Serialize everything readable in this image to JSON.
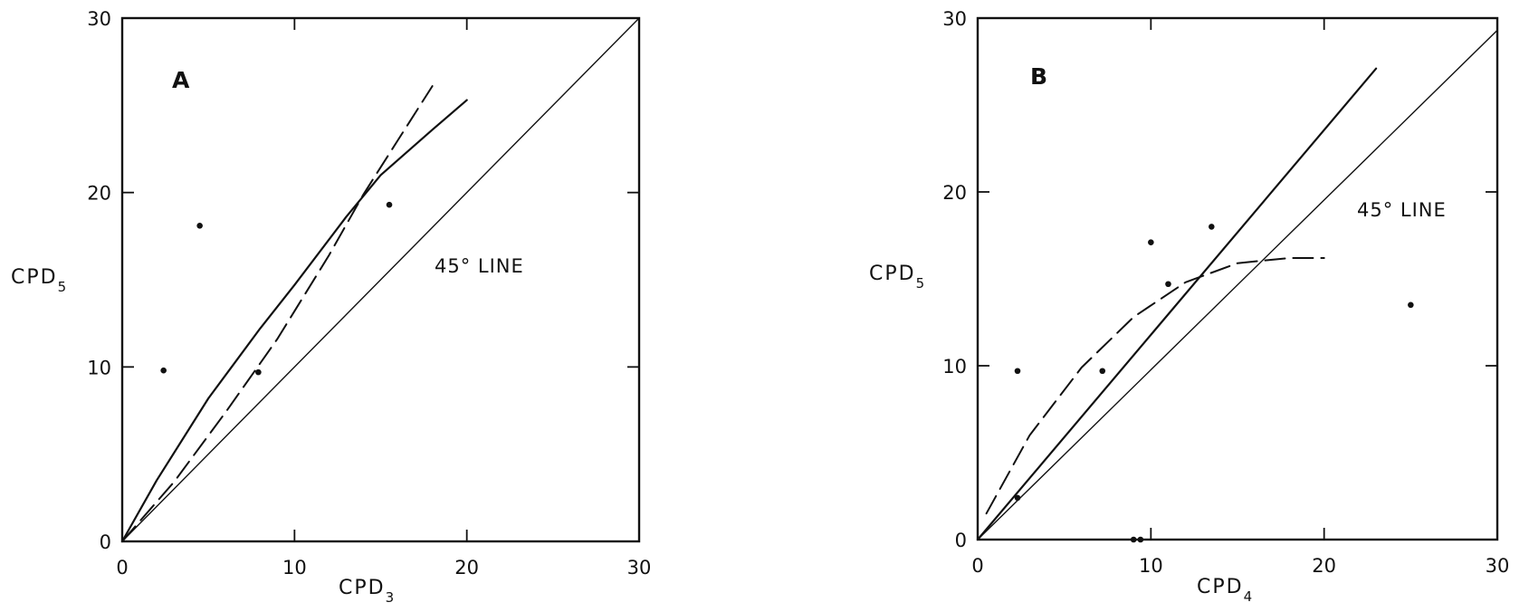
{
  "chart_data": [
    {
      "type": "line",
      "panel_label": "A",
      "xlabel": "CPD",
      "xlabel_sub": "3",
      "ylabel": "CPD",
      "ylabel_sub": "5",
      "xlim": [
        0,
        30
      ],
      "ylim": [
        0,
        30
      ],
      "xticks": [
        "0",
        "10",
        "20",
        "30"
      ],
      "yticks": [
        "0",
        "10",
        "20",
        "30"
      ],
      "grid": false,
      "annotation": "45° LINE",
      "series": [
        {
          "style": "solid-thin",
          "x": [
            0,
            30
          ],
          "y": [
            0,
            30
          ]
        },
        {
          "style": "solid",
          "x": [
            0,
            2,
            5,
            8,
            10,
            13,
            15,
            18,
            20
          ],
          "y": [
            0,
            3.5,
            8.2,
            12.2,
            14.7,
            18.6,
            21,
            23.6,
            25.3
          ]
        },
        {
          "style": "dashed",
          "x": [
            0,
            3,
            6,
            9,
            12,
            14,
            16,
            18
          ],
          "y": [
            0,
            3.4,
            7.4,
            11.6,
            16.4,
            19.9,
            23,
            26.1
          ]
        },
        {
          "style": "points",
          "x": [
            2.4,
            4.5,
            7.9,
            15.5
          ],
          "y": [
            9.8,
            18.1,
            9.7,
            19.3
          ]
        }
      ]
    },
    {
      "type": "line",
      "panel_label": "B",
      "xlabel": "CPD",
      "xlabel_sub": "4",
      "ylabel": "CPD",
      "ylabel_sub": "5",
      "xlim": [
        0,
        30
      ],
      "ylim": [
        0,
        30
      ],
      "xticks": [
        "0",
        "10",
        "20",
        "30"
      ],
      "yticks": [
        "0",
        "10",
        "20",
        "30"
      ],
      "grid": false,
      "annotation": "45° LINE",
      "series": [
        {
          "style": "solid-thin",
          "x": [
            0,
            30
          ],
          "y": [
            0,
            29.3
          ]
        },
        {
          "style": "solid",
          "x": [
            0,
            23
          ],
          "y": [
            0,
            27.1
          ]
        },
        {
          "style": "dashed",
          "x": [
            0.5,
            3,
            6,
            9,
            12,
            15,
            18,
            20
          ],
          "y": [
            1.5,
            6,
            9.9,
            12.8,
            14.8,
            15.9,
            16.2,
            16.2
          ]
        },
        {
          "style": "points",
          "x": [
            2.3,
            2.3,
            7.2,
            10,
            11,
            13.5,
            25,
            9,
            9.4
          ],
          "y": [
            9.7,
            2.4,
            9.7,
            17.1,
            14.7,
            18,
            13.5,
            0,
            0
          ]
        }
      ]
    }
  ]
}
